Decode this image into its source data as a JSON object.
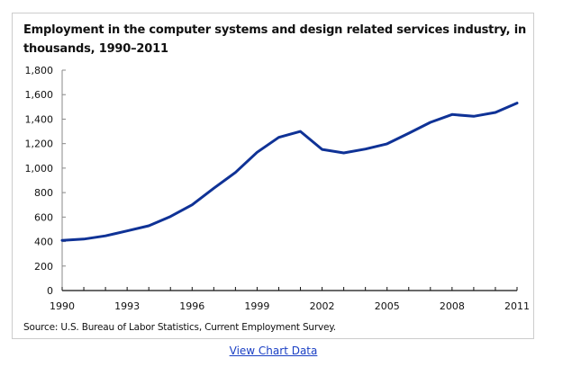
{
  "chart_data": {
    "type": "line",
    "title": "Employment in the computer systems and design related services industry, in thousands, 1990–2011",
    "xlabel": "",
    "ylabel": "",
    "x": [
      1990,
      1991,
      1992,
      1993,
      1994,
      1995,
      1996,
      1997,
      1998,
      1999,
      2000,
      2001,
      2002,
      2003,
      2004,
      2005,
      2006,
      2007,
      2008,
      2009,
      2010,
      2011
    ],
    "series": [
      {
        "name": "Employment (thousands)",
        "color": "#0f3296",
        "values": [
          410,
          420,
          447,
          487,
          529,
          605,
          700,
          835,
          965,
          1129,
          1251,
          1300,
          1153,
          1124,
          1156,
          1198,
          1285,
          1374,
          1438,
          1423,
          1455,
          1531
        ]
      }
    ],
    "xlim": [
      1990,
      2011
    ],
    "ylim": [
      0,
      1800
    ],
    "x_tick_labels": [
      "1990",
      "1993",
      "1996",
      "1999",
      "2002",
      "2005",
      "2008",
      "2011"
    ],
    "x_tick_values": [
      1990,
      1993,
      1996,
      1999,
      2002,
      2005,
      2008,
      2011
    ],
    "y_tick_labels": [
      "0",
      "200",
      "400",
      "600",
      "800",
      "1,000",
      "1,200",
      "1,400",
      "1,600",
      "1,800"
    ],
    "y_tick_values": [
      0,
      200,
      400,
      600,
      800,
      1000,
      1200,
      1400,
      1600,
      1800
    ],
    "grid": false,
    "legend": "none",
    "source": "Source: U.S. Bureau of Labor Statistics, Current Employment Survey."
  },
  "link": {
    "label": "View Chart Data"
  }
}
